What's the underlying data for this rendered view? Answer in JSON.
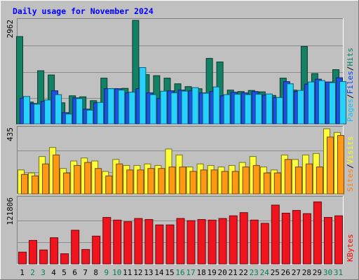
{
  "chart_data": {
    "type": "bar",
    "title": "Daily usage for November 2024",
    "categories": [
      "1",
      "2",
      "3",
      "4",
      "5",
      "6",
      "7",
      "8",
      "9",
      "10",
      "11",
      "12",
      "13",
      "14",
      "15",
      "16",
      "17",
      "18",
      "19",
      "20",
      "21",
      "22",
      "23",
      "24",
      "25",
      "26",
      "27",
      "28",
      "29",
      "30",
      "31"
    ],
    "weekend_categories": [
      "2",
      "3",
      "9",
      "10",
      "16",
      "17",
      "23",
      "24",
      "30",
      "31"
    ],
    "panels": [
      {
        "id": "top",
        "ymax": 2962,
        "ymax_label": "2962",
        "legend": [
          {
            "text": "Pages",
            "color": "#00c8ff"
          },
          {
            "text": "Files",
            "color": "#0040ff"
          },
          {
            "text": "Hits",
            "color": "#008060"
          }
        ],
        "series": [
          {
            "name": "Hits",
            "color": "#148064",
            "values": [
              2480,
              620,
              1510,
              1390,
              600,
              800,
              770,
              660,
              1300,
              1000,
              1010,
              2940,
              1400,
              1370,
              1300,
              1140,
              1060,
              1000,
              1860,
              1760,
              960,
              920,
              950,
              910,
              810,
              1300,
              960,
              2200,
              1430,
              1170,
              1540
            ]
          },
          {
            "name": "Files",
            "color": "#1e50e6",
            "values": [
              730,
              580,
              640,
              940,
              320,
              740,
              420,
              600,
              1000,
              1000,
              880,
              1000,
              880,
              720,
              940,
              960,
              940,
              880,
              920,
              800,
              900,
              880,
              920,
              820,
              750,
              1200,
              920,
              1130,
              1270,
              1190,
              1310
            ]
          },
          {
            "name": "Pages",
            "color": "#28d2ff",
            "values": [
              780,
              560,
              680,
              830,
              280,
              720,
              390,
              610,
              1000,
              960,
              900,
              1600,
              830,
              930,
              880,
              930,
              1030,
              870,
              1050,
              830,
              840,
              830,
              840,
              850,
              750,
              1140,
              950,
              1190,
              1230,
              1170,
              1200
            ]
          }
        ]
      },
      {
        "id": "middle",
        "ymax": 435,
        "ymax_label": "435",
        "legend": [
          {
            "text": "Sites",
            "color": "#ff8000"
          },
          {
            "text": "Visits",
            "color": "#ffff00"
          }
        ],
        "series": [
          {
            "name": "Visits",
            "color": "#ffff3c",
            "values": [
              160,
              140,
              250,
              310,
              170,
              220,
              240,
              220,
              150,
              230,
              190,
              190,
              200,
              190,
              300,
              260,
              180,
              200,
              190,
              180,
              190,
              210,
              250,
              180,
              160,
              260,
              230,
              260,
              270,
              435,
              410
            ]
          },
          {
            "name": "Sites",
            "color": "#ff9914",
            "values": [
              130,
              120,
              200,
              260,
              140,
              190,
              210,
              170,
              120,
              200,
              160,
              160,
              170,
              170,
              180,
              180,
              150,
              160,
              160,
              150,
              150,
              180,
              190,
              140,
              140,
              230,
              180,
              200,
              180,
              380,
              390
            ]
          }
        ]
      },
      {
        "id": "bottom",
        "ymax": 121806,
        "ymax_label": "121806",
        "legend": [
          {
            "text": "KBytes",
            "color": "#ff0000"
          }
        ],
        "series": [
          {
            "name": "KBytes",
            "color": "#f0141e",
            "values": [
              22000,
              44000,
              26000,
              49000,
              19000,
              63000,
              27000,
              52000,
              87000,
              82000,
              79000,
              85000,
              83000,
              73000,
              73000,
              85000,
              81000,
              83000,
              82000,
              85000,
              90000,
              96000,
              82000,
              76000,
              110000,
              95000,
              100000,
              94000,
              116000,
              87000,
              90000
            ]
          }
        ]
      }
    ]
  }
}
